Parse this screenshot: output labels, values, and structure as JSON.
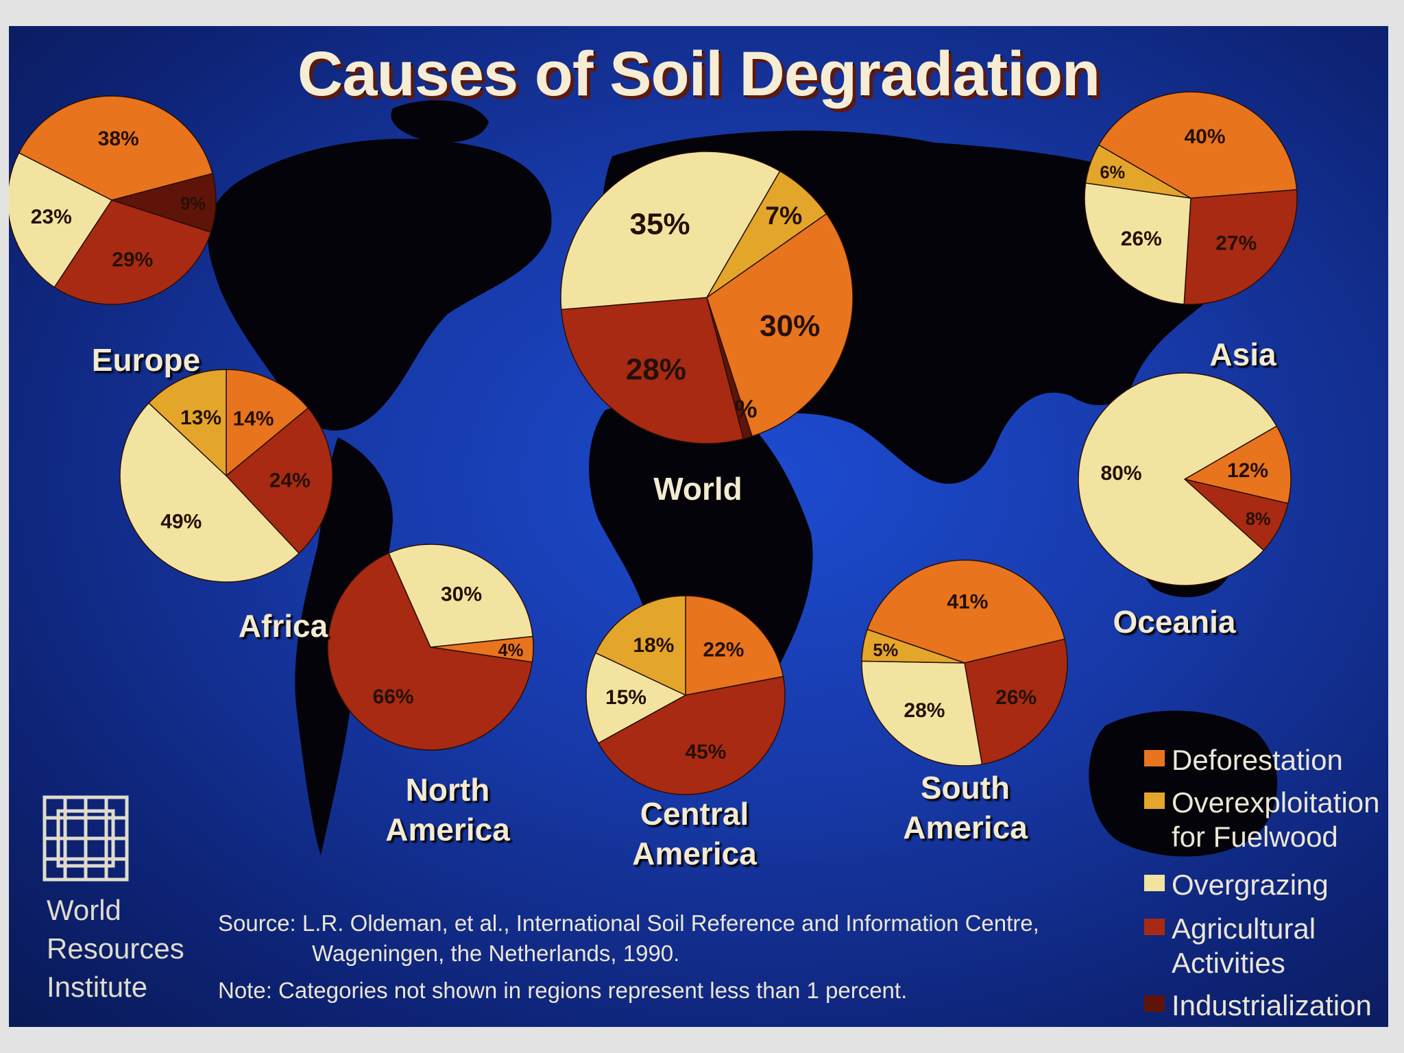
{
  "title": "Causes of Soil Degradation",
  "legend": [
    {
      "label": "Deforestation",
      "color": "#e8741e"
    },
    {
      "label": "Overexploitation\nfor Fuelwood",
      "color": "#e4a62a"
    },
    {
      "label": "Overgrazing",
      "color": "#f2e4a0"
    },
    {
      "label": "Agricultural\nActivities",
      "color": "#a82a12"
    },
    {
      "label": "Industrialization",
      "color": "#5e1408"
    }
  ],
  "source_line1": "Source: L.R. Oldeman, et al., International Soil Reference and Information Centre,",
  "source_line2": "Wageningen, the Netherlands, 1990.",
  "note": "Note: Categories not shown in regions represent less than 1 percent.",
  "publisher": "World\nResources\nInstitute",
  "chart_data": [
    {
      "type": "pie",
      "region": "World",
      "labels": [
        "Deforestation",
        "Industrialization",
        "Agricultural Activities",
        "Overgrazing",
        "Overexploitation for Fuelwood"
      ],
      "values": [
        30,
        1,
        28,
        35,
        7
      ]
    },
    {
      "type": "pie",
      "region": "Europe",
      "labels": [
        "Deforestation",
        "Industrialization",
        "Agricultural Activities",
        "Overgrazing"
      ],
      "values": [
        38,
        9,
        29,
        23
      ]
    },
    {
      "type": "pie",
      "region": "Asia",
      "labels": [
        "Deforestation",
        "Agricultural Activities",
        "Overgrazing",
        "Overexploitation for Fuelwood"
      ],
      "values": [
        40,
        27,
        26,
        6
      ]
    },
    {
      "type": "pie",
      "region": "Africa",
      "labels": [
        "Deforestation",
        "Agricultural Activities",
        "Overgrazing",
        "Overexploitation for Fuelwood"
      ],
      "values": [
        14,
        24,
        49,
        13
      ]
    },
    {
      "type": "pie",
      "region": "Oceania",
      "labels": [
        "Deforestation",
        "Agricultural Activities",
        "Overgrazing"
      ],
      "values": [
        12,
        8,
        80
      ]
    },
    {
      "type": "pie",
      "region": "North America",
      "labels": [
        "Deforestation",
        "Agricultural Activities",
        "Overgrazing"
      ],
      "values": [
        4,
        66,
        30
      ]
    },
    {
      "type": "pie",
      "region": "Central America",
      "labels": [
        "Deforestation",
        "Agricultural Activities",
        "Overgrazing",
        "Overexploitation for Fuelwood"
      ],
      "values": [
        22,
        45,
        15,
        18
      ]
    },
    {
      "type": "pie",
      "region": "South America",
      "labels": [
        "Deforestation",
        "Agricultural Activities",
        "Overgrazing",
        "Overexploitation for Fuelwood"
      ],
      "values": [
        41,
        26,
        28,
        5
      ]
    }
  ]
}
